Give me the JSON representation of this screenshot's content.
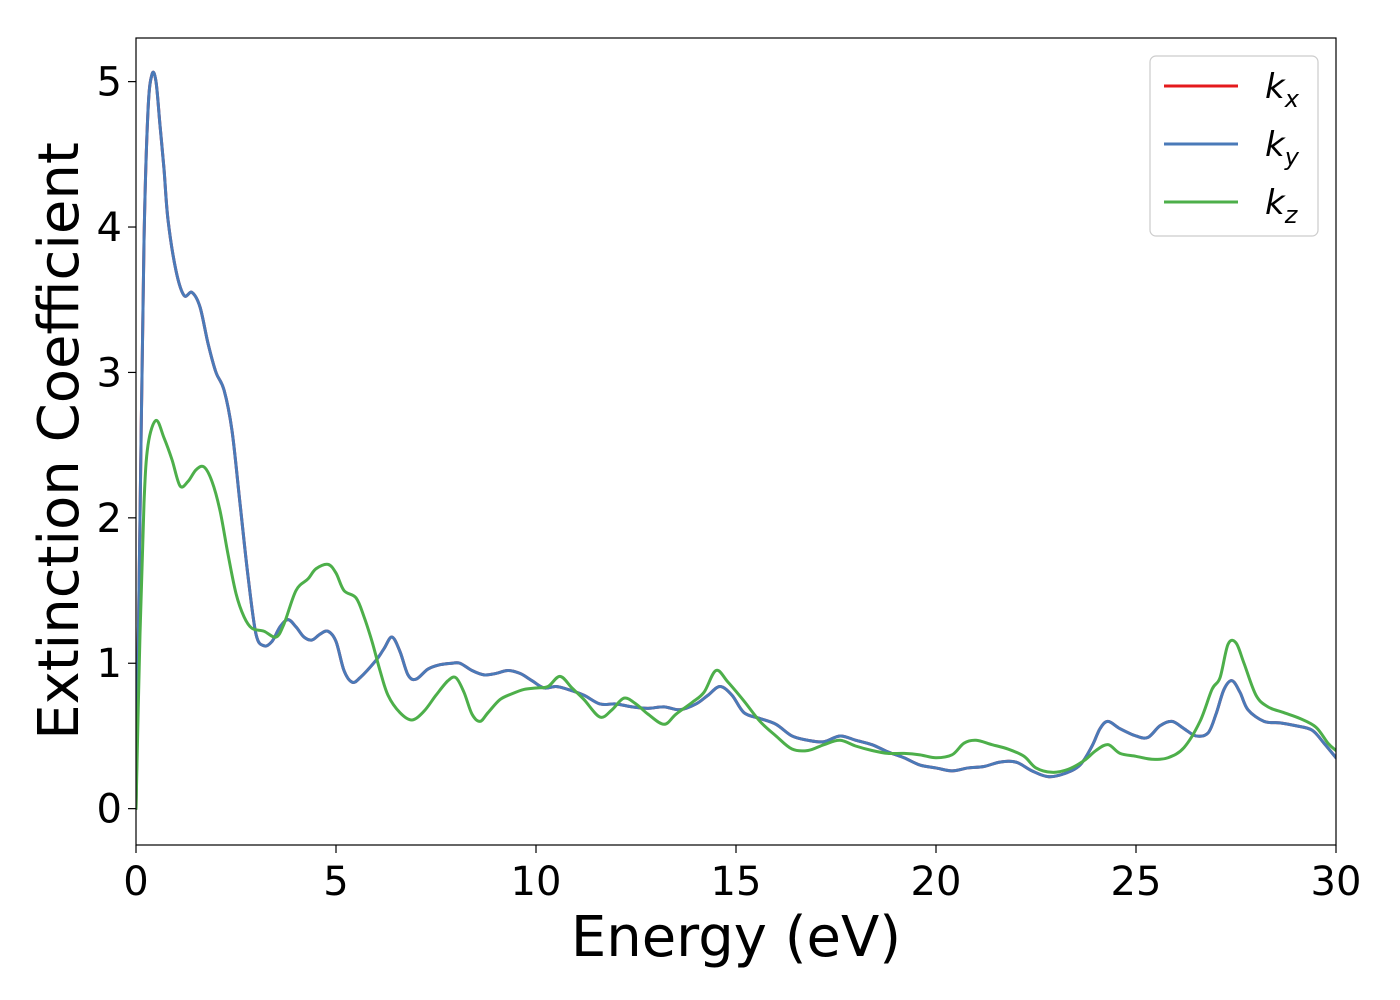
{
  "chart_data": {
    "type": "line",
    "title": "",
    "xlabel": "Energy (eV)",
    "ylabel": "Extinction Coefficient",
    "xlim": [
      0,
      30
    ],
    "ylim": [
      -0.25,
      5.3
    ],
    "x_ticks": [
      "0",
      "5",
      "10",
      "15",
      "20",
      "25",
      "30"
    ],
    "y_ticks": [
      "0",
      "1",
      "2",
      "3",
      "4",
      "5"
    ],
    "grid": false,
    "legend_position": "top-right",
    "series": [
      {
        "name": "k_x",
        "label_main": "k",
        "label_sub": "x",
        "color": "#e41a1c",
        "points": [
          [
            0,
            0
          ],
          [
            0.1,
            2.0
          ],
          [
            0.2,
            3.9
          ],
          [
            0.3,
            4.8
          ],
          [
            0.4,
            5.05
          ],
          [
            0.5,
            5.0
          ],
          [
            0.6,
            4.7
          ],
          [
            0.7,
            4.4
          ],
          [
            0.8,
            4.05
          ],
          [
            1.0,
            3.7
          ],
          [
            1.2,
            3.53
          ],
          [
            1.4,
            3.55
          ],
          [
            1.6,
            3.45
          ],
          [
            1.8,
            3.2
          ],
          [
            2.0,
            3.0
          ],
          [
            2.2,
            2.88
          ],
          [
            2.4,
            2.6
          ],
          [
            2.6,
            2.1
          ],
          [
            2.8,
            1.6
          ],
          [
            3.0,
            1.2
          ],
          [
            3.2,
            1.12
          ],
          [
            3.4,
            1.15
          ],
          [
            3.6,
            1.25
          ],
          [
            3.8,
            1.3
          ],
          [
            4.0,
            1.25
          ],
          [
            4.2,
            1.18
          ],
          [
            4.4,
            1.16
          ],
          [
            4.6,
            1.2
          ],
          [
            4.8,
            1.22
          ],
          [
            5.0,
            1.15
          ],
          [
            5.2,
            0.95
          ],
          [
            5.4,
            0.87
          ],
          [
            5.6,
            0.9
          ],
          [
            6.0,
            1.02
          ],
          [
            6.2,
            1.1
          ],
          [
            6.4,
            1.18
          ],
          [
            6.6,
            1.08
          ],
          [
            6.8,
            0.92
          ],
          [
            7.0,
            0.89
          ],
          [
            7.3,
            0.96
          ],
          [
            7.6,
            0.99
          ],
          [
            7.9,
            1.0
          ],
          [
            8.1,
            1.0
          ],
          [
            8.4,
            0.95
          ],
          [
            8.7,
            0.92
          ],
          [
            9.0,
            0.93
          ],
          [
            9.3,
            0.95
          ],
          [
            9.6,
            0.93
          ],
          [
            9.9,
            0.88
          ],
          [
            10.2,
            0.83
          ],
          [
            10.5,
            0.84
          ],
          [
            10.8,
            0.82
          ],
          [
            11.2,
            0.78
          ],
          [
            11.6,
            0.72
          ],
          [
            12.0,
            0.72
          ],
          [
            12.4,
            0.7
          ],
          [
            12.8,
            0.69
          ],
          [
            13.2,
            0.7
          ],
          [
            13.6,
            0.68
          ],
          [
            14.0,
            0.72
          ],
          [
            14.3,
            0.78
          ],
          [
            14.6,
            0.84
          ],
          [
            14.9,
            0.78
          ],
          [
            15.2,
            0.66
          ],
          [
            15.6,
            0.62
          ],
          [
            16.0,
            0.58
          ],
          [
            16.4,
            0.5
          ],
          [
            16.8,
            0.47
          ],
          [
            17.2,
            0.46
          ],
          [
            17.6,
            0.5
          ],
          [
            18.0,
            0.47
          ],
          [
            18.4,
            0.44
          ],
          [
            18.8,
            0.39
          ],
          [
            19.2,
            0.35
          ],
          [
            19.6,
            0.3
          ],
          [
            20.0,
            0.28
          ],
          [
            20.4,
            0.26
          ],
          [
            20.8,
            0.28
          ],
          [
            21.2,
            0.29
          ],
          [
            21.6,
            0.32
          ],
          [
            22.0,
            0.32
          ],
          [
            22.4,
            0.26
          ],
          [
            22.8,
            0.22
          ],
          [
            23.2,
            0.24
          ],
          [
            23.6,
            0.3
          ],
          [
            23.9,
            0.43
          ],
          [
            24.1,
            0.55
          ],
          [
            24.3,
            0.6
          ],
          [
            24.6,
            0.55
          ],
          [
            25.0,
            0.5
          ],
          [
            25.3,
            0.49
          ],
          [
            25.6,
            0.57
          ],
          [
            25.9,
            0.6
          ],
          [
            26.2,
            0.55
          ],
          [
            26.5,
            0.5
          ],
          [
            26.8,
            0.52
          ],
          [
            27.0,
            0.65
          ],
          [
            27.2,
            0.82
          ],
          [
            27.4,
            0.88
          ],
          [
            27.6,
            0.8
          ],
          [
            27.8,
            0.68
          ],
          [
            28.2,
            0.6
          ],
          [
            28.6,
            0.59
          ],
          [
            29.0,
            0.57
          ],
          [
            29.4,
            0.54
          ],
          [
            29.7,
            0.45
          ],
          [
            30.0,
            0.35
          ]
        ]
      },
      {
        "name": "k_y",
        "label_main": "k",
        "label_sub": "y",
        "color": "#4a7ab8",
        "points": [
          [
            0,
            0
          ],
          [
            0.1,
            2.0
          ],
          [
            0.2,
            3.9
          ],
          [
            0.3,
            4.8
          ],
          [
            0.4,
            5.05
          ],
          [
            0.5,
            5.0
          ],
          [
            0.6,
            4.7
          ],
          [
            0.7,
            4.4
          ],
          [
            0.8,
            4.05
          ],
          [
            1.0,
            3.7
          ],
          [
            1.2,
            3.53
          ],
          [
            1.4,
            3.55
          ],
          [
            1.6,
            3.45
          ],
          [
            1.8,
            3.2
          ],
          [
            2.0,
            3.0
          ],
          [
            2.2,
            2.88
          ],
          [
            2.4,
            2.6
          ],
          [
            2.6,
            2.1
          ],
          [
            2.8,
            1.6
          ],
          [
            3.0,
            1.2
          ],
          [
            3.2,
            1.12
          ],
          [
            3.4,
            1.15
          ],
          [
            3.6,
            1.25
          ],
          [
            3.8,
            1.3
          ],
          [
            4.0,
            1.25
          ],
          [
            4.2,
            1.18
          ],
          [
            4.4,
            1.16
          ],
          [
            4.6,
            1.2
          ],
          [
            4.8,
            1.22
          ],
          [
            5.0,
            1.15
          ],
          [
            5.2,
            0.95
          ],
          [
            5.4,
            0.87
          ],
          [
            5.6,
            0.9
          ],
          [
            6.0,
            1.02
          ],
          [
            6.2,
            1.1
          ],
          [
            6.4,
            1.18
          ],
          [
            6.6,
            1.08
          ],
          [
            6.8,
            0.92
          ],
          [
            7.0,
            0.89
          ],
          [
            7.3,
            0.96
          ],
          [
            7.6,
            0.99
          ],
          [
            7.9,
            1.0
          ],
          [
            8.1,
            1.0
          ],
          [
            8.4,
            0.95
          ],
          [
            8.7,
            0.92
          ],
          [
            9.0,
            0.93
          ],
          [
            9.3,
            0.95
          ],
          [
            9.6,
            0.93
          ],
          [
            9.9,
            0.88
          ],
          [
            10.2,
            0.83
          ],
          [
            10.5,
            0.84
          ],
          [
            10.8,
            0.82
          ],
          [
            11.2,
            0.78
          ],
          [
            11.6,
            0.72
          ],
          [
            12.0,
            0.72
          ],
          [
            12.4,
            0.7
          ],
          [
            12.8,
            0.69
          ],
          [
            13.2,
            0.7
          ],
          [
            13.6,
            0.68
          ],
          [
            14.0,
            0.72
          ],
          [
            14.3,
            0.78
          ],
          [
            14.6,
            0.84
          ],
          [
            14.9,
            0.78
          ],
          [
            15.2,
            0.66
          ],
          [
            15.6,
            0.62
          ],
          [
            16.0,
            0.58
          ],
          [
            16.4,
            0.5
          ],
          [
            16.8,
            0.47
          ],
          [
            17.2,
            0.46
          ],
          [
            17.6,
            0.5
          ],
          [
            18.0,
            0.47
          ],
          [
            18.4,
            0.44
          ],
          [
            18.8,
            0.39
          ],
          [
            19.2,
            0.35
          ],
          [
            19.6,
            0.3
          ],
          [
            20.0,
            0.28
          ],
          [
            20.4,
            0.26
          ],
          [
            20.8,
            0.28
          ],
          [
            21.2,
            0.29
          ],
          [
            21.6,
            0.32
          ],
          [
            22.0,
            0.32
          ],
          [
            22.4,
            0.26
          ],
          [
            22.8,
            0.22
          ],
          [
            23.2,
            0.24
          ],
          [
            23.6,
            0.3
          ],
          [
            23.9,
            0.43
          ],
          [
            24.1,
            0.55
          ],
          [
            24.3,
            0.6
          ],
          [
            24.6,
            0.55
          ],
          [
            25.0,
            0.5
          ],
          [
            25.3,
            0.49
          ],
          [
            25.6,
            0.57
          ],
          [
            25.9,
            0.6
          ],
          [
            26.2,
            0.55
          ],
          [
            26.5,
            0.5
          ],
          [
            26.8,
            0.52
          ],
          [
            27.0,
            0.65
          ],
          [
            27.2,
            0.82
          ],
          [
            27.4,
            0.88
          ],
          [
            27.6,
            0.8
          ],
          [
            27.8,
            0.68
          ],
          [
            28.2,
            0.6
          ],
          [
            28.6,
            0.59
          ],
          [
            29.0,
            0.57
          ],
          [
            29.4,
            0.54
          ],
          [
            29.7,
            0.45
          ],
          [
            30.0,
            0.35
          ]
        ]
      },
      {
        "name": "k_z",
        "label_main": "k",
        "label_sub": "z",
        "color": "#4daf4a",
        "points": [
          [
            0,
            0
          ],
          [
            0.1,
            1.2
          ],
          [
            0.2,
            2.1
          ],
          [
            0.3,
            2.5
          ],
          [
            0.5,
            2.67
          ],
          [
            0.7,
            2.55
          ],
          [
            0.9,
            2.4
          ],
          [
            1.1,
            2.22
          ],
          [
            1.3,
            2.25
          ],
          [
            1.5,
            2.33
          ],
          [
            1.7,
            2.35
          ],
          [
            1.9,
            2.25
          ],
          [
            2.1,
            2.05
          ],
          [
            2.3,
            1.75
          ],
          [
            2.5,
            1.48
          ],
          [
            2.7,
            1.32
          ],
          [
            2.9,
            1.24
          ],
          [
            3.2,
            1.22
          ],
          [
            3.5,
            1.18
          ],
          [
            3.7,
            1.27
          ],
          [
            4.0,
            1.5
          ],
          [
            4.3,
            1.58
          ],
          [
            4.5,
            1.65
          ],
          [
            4.8,
            1.68
          ],
          [
            5.0,
            1.62
          ],
          [
            5.2,
            1.5
          ],
          [
            5.5,
            1.45
          ],
          [
            5.7,
            1.32
          ],
          [
            5.9,
            1.15
          ],
          [
            6.1,
            0.95
          ],
          [
            6.3,
            0.78
          ],
          [
            6.6,
            0.66
          ],
          [
            6.9,
            0.61
          ],
          [
            7.2,
            0.67
          ],
          [
            7.5,
            0.78
          ],
          [
            7.8,
            0.88
          ],
          [
            8.0,
            0.9
          ],
          [
            8.2,
            0.8
          ],
          [
            8.4,
            0.65
          ],
          [
            8.6,
            0.6
          ],
          [
            8.8,
            0.66
          ],
          [
            9.1,
            0.75
          ],
          [
            9.4,
            0.79
          ],
          [
            9.7,
            0.82
          ],
          [
            10.0,
            0.83
          ],
          [
            10.3,
            0.84
          ],
          [
            10.6,
            0.91
          ],
          [
            10.9,
            0.83
          ],
          [
            11.2,
            0.75
          ],
          [
            11.6,
            0.63
          ],
          [
            11.9,
            0.68
          ],
          [
            12.2,
            0.76
          ],
          [
            12.5,
            0.72
          ],
          [
            12.8,
            0.65
          ],
          [
            13.2,
            0.58
          ],
          [
            13.5,
            0.65
          ],
          [
            13.9,
            0.73
          ],
          [
            14.2,
            0.8
          ],
          [
            14.5,
            0.95
          ],
          [
            14.8,
            0.87
          ],
          [
            15.2,
            0.74
          ],
          [
            15.6,
            0.6
          ],
          [
            16.0,
            0.5
          ],
          [
            16.4,
            0.41
          ],
          [
            16.8,
            0.4
          ],
          [
            17.2,
            0.44
          ],
          [
            17.6,
            0.47
          ],
          [
            18.0,
            0.43
          ],
          [
            18.4,
            0.4
          ],
          [
            18.8,
            0.38
          ],
          [
            19.2,
            0.38
          ],
          [
            19.6,
            0.37
          ],
          [
            20.0,
            0.35
          ],
          [
            20.4,
            0.37
          ],
          [
            20.7,
            0.45
          ],
          [
            21.0,
            0.47
          ],
          [
            21.4,
            0.44
          ],
          [
            21.8,
            0.41
          ],
          [
            22.2,
            0.36
          ],
          [
            22.5,
            0.28
          ],
          [
            22.9,
            0.25
          ],
          [
            23.3,
            0.27
          ],
          [
            23.7,
            0.33
          ],
          [
            24.0,
            0.4
          ],
          [
            24.3,
            0.44
          ],
          [
            24.6,
            0.38
          ],
          [
            25.0,
            0.36
          ],
          [
            25.4,
            0.34
          ],
          [
            25.8,
            0.35
          ],
          [
            26.2,
            0.42
          ],
          [
            26.6,
            0.6
          ],
          [
            26.9,
            0.82
          ],
          [
            27.1,
            0.9
          ],
          [
            27.3,
            1.13
          ],
          [
            27.5,
            1.14
          ],
          [
            27.7,
            1.0
          ],
          [
            28.0,
            0.78
          ],
          [
            28.3,
            0.7
          ],
          [
            28.7,
            0.66
          ],
          [
            29.1,
            0.62
          ],
          [
            29.5,
            0.56
          ],
          [
            29.8,
            0.45
          ],
          [
            30.0,
            0.4
          ]
        ]
      }
    ]
  }
}
